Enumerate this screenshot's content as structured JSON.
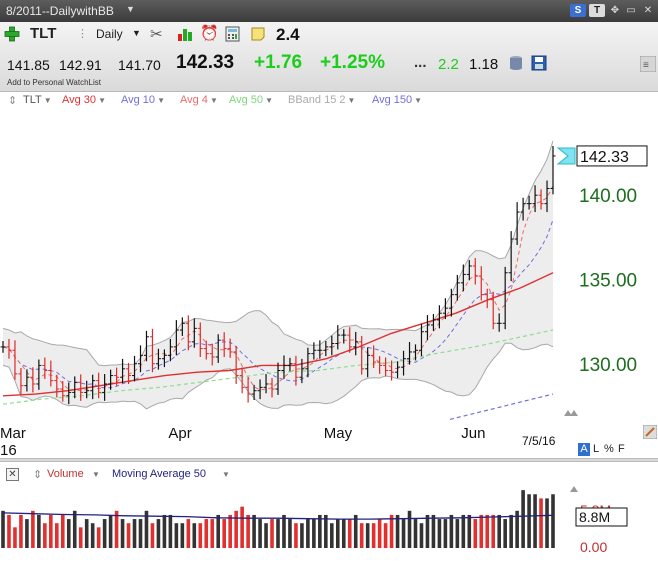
{
  "window": {
    "title": "8/2011--DailywithBB"
  },
  "toolbar": {
    "symbol": "TLT",
    "period": "Daily",
    "value_badge": "2.4",
    "open": "141.85",
    "high": "142.91",
    "low": "141.70",
    "last": "142.33",
    "change": "+1.76",
    "change_pct": "+1.25%",
    "ellipsis": "...",
    "extra_a": "2.2",
    "extra_b": "1.18",
    "watchlist_label": "Add to Personal WatchList"
  },
  "indicators": [
    {
      "label": "TLT",
      "color": "#444444"
    },
    {
      "label": "Avg 30",
      "color": "#e03030"
    },
    {
      "label": "Avg 10",
      "color": "#6f6fdc"
    },
    {
      "label": "Avg 4",
      "color": "#ee6a6a"
    },
    {
      "label": "Avg 50",
      "color": "#8fdc8f"
    },
    {
      "label": "BBand 15 2",
      "color": "#aaaaaa"
    },
    {
      "label": "Avg 150",
      "color": "#6f6fdc"
    }
  ],
  "volume_panel": {
    "label": "Volume",
    "ma_label": "Moving Average 50",
    "right_label_top": "8.8M",
    "right_label_bottom": "0.00",
    "ticks_hint": "5.8M"
  },
  "chart_data": [
    {
      "type": "ohlc",
      "symbol": "TLT",
      "x_labels": [
        "Mar\n16",
        "Apr",
        "May",
        "Jun"
      ],
      "date_label": "7/5/16",
      "last_price_label": "142.33",
      "y_ticks": [
        "140.00",
        "135.00",
        "130.00"
      ],
      "ylim": [
        126.9,
        144.7
      ],
      "series": [
        {
          "name": "TLT",
          "values": [
            131.0,
            130.8,
            129.4,
            128.7,
            129.2,
            128.8,
            129.9,
            129.6,
            129.0,
            128.5,
            128.1,
            128.3,
            128.9,
            128.3,
            128.4,
            129.0,
            128.3,
            128.8,
            129.3,
            129.2,
            129.7,
            129.3,
            130.0,
            130.5,
            131.6,
            130.0,
            130.3,
            130.5,
            131.0,
            132.0,
            132.4,
            131.3,
            132.1,
            130.9,
            130.6,
            130.4,
            131.4,
            130.9,
            130.7,
            129.3,
            128.6,
            128.2,
            128.4,
            128.6,
            128.8,
            128.5,
            129.6,
            129.9,
            130.0,
            129.2,
            129.7,
            130.6,
            130.8,
            130.8,
            131.0,
            131.2,
            131.7,
            131.7,
            131.0,
            131.3,
            129.7,
            130.5,
            130.1,
            129.9,
            129.6,
            129.5,
            129.8,
            130.3,
            130.7,
            130.8,
            131.9,
            132.3,
            132.6,
            133.0,
            133.3,
            134.1,
            134.8,
            135.3,
            135.8,
            135.2,
            134.1,
            133.8,
            132.4,
            132.4,
            135.4,
            137.4,
            139.0,
            139.5,
            139.5,
            140.0,
            139.5,
            140.4,
            142.33
          ]
        },
        {
          "name": "Avg 30",
          "values": [
            128.1,
            128.2,
            128.4,
            128.7,
            129.0,
            129.3,
            129.5,
            129.6,
            129.9,
            129.9,
            130.3,
            131.0,
            131.8,
            132.4,
            133.0,
            133.8,
            134.5,
            135.4
          ]
        },
        {
          "name": "Avg 50",
          "values": [
            127.6,
            127.9,
            128.1,
            128.4,
            128.6,
            128.9,
            129.2,
            129.5,
            129.6,
            129.9,
            130.1,
            130.6,
            131.0,
            131.5,
            132.0
          ]
        },
        {
          "name": "Avg 150",
          "values": [
            126.7,
            127.0,
            127.3,
            127.6,
            127.9,
            128.2
          ]
        }
      ]
    },
    {
      "type": "bar",
      "name": "Volume",
      "ylim": [
        0,
        15
      ],
      "unit": "M",
      "series": [
        {
          "name": "Volume",
          "values": [
            9,
            8,
            5,
            8,
            7,
            9,
            8,
            6,
            8,
            6,
            8,
            7,
            9,
            5,
            7,
            6,
            5,
            7,
            8,
            9,
            7,
            6,
            7,
            7,
            9,
            6,
            7,
            8,
            8,
            6,
            6,
            7,
            6,
            6,
            7,
            7,
            8,
            7,
            8,
            9,
            10,
            8,
            8,
            7,
            6,
            7,
            7,
            8,
            7,
            6,
            6,
            7,
            7,
            8,
            8,
            6,
            7,
            7,
            7,
            8,
            6,
            6,
            6,
            7,
            6,
            8,
            8,
            7,
            9,
            7,
            6,
            8,
            8,
            7,
            7,
            8,
            7,
            8,
            8,
            7,
            8,
            8,
            8,
            8,
            7,
            8,
            9,
            14,
            13,
            13,
            12,
            12,
            13
          ]
        },
        {
          "name": "Moving Average 50",
          "values": [
            8.5,
            8.3,
            8.1,
            8.0,
            7.8,
            7.7,
            7.6,
            7.3,
            7.2,
            7.2,
            7.1,
            7.0,
            7.0,
            7.1,
            7.2,
            7.3,
            7.5,
            7.7,
            7.9
          ]
        }
      ]
    }
  ]
}
